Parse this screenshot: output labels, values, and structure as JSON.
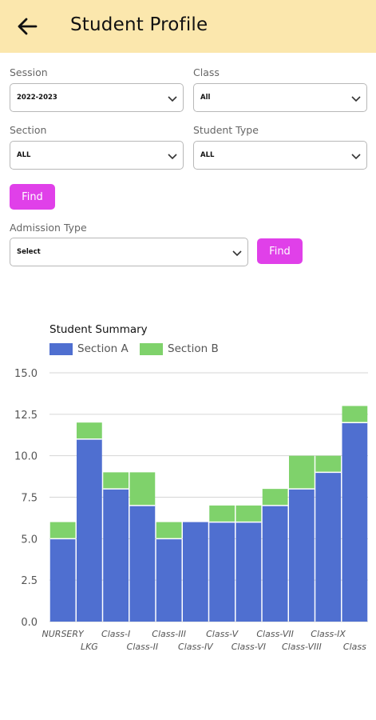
{
  "header": {
    "title": "Student Profile",
    "back_icon": "arrow-left-icon"
  },
  "filters": {
    "session": {
      "label": "Session",
      "value": "2022-2023"
    },
    "class": {
      "label": "Class",
      "value": "All"
    },
    "section": {
      "label": "Section",
      "value": "ALL"
    },
    "student_type": {
      "label": "Student Type",
      "value": "ALL"
    },
    "find_label": "Find",
    "admission_type": {
      "label": "Admission Type",
      "value": "Select"
    },
    "admission_find_label": "Find"
  },
  "colors": {
    "header_bg": "#fbe7ad",
    "button": "#e040e9",
    "section_a": "#4f6fd0",
    "section_b": "#7fd26b"
  },
  "chart_data": {
    "type": "bar",
    "stacked": true,
    "title": "Student Summary",
    "categories": [
      "NURSERY",
      "LKG",
      "Class-I",
      "Class-II",
      "Class-III",
      "Class-IV",
      "Class-V",
      "Class-VI",
      "Class-VII",
      "Class-VIII",
      "Class-IX",
      "Class"
    ],
    "series": [
      {
        "name": "Section A",
        "values": [
          5,
          11,
          8,
          7,
          5,
          6,
          6,
          6,
          7,
          8,
          9,
          12
        ]
      },
      {
        "name": "Section B",
        "values": [
          1,
          1,
          1,
          2,
          1,
          0,
          1,
          1,
          1,
          2,
          1,
          1
        ]
      }
    ],
    "yticks": [
      "0.0",
      "2.5",
      "5.0",
      "7.5",
      "10.0",
      "12.5",
      "15.0"
    ],
    "ylim": [
      0,
      15
    ],
    "grid": true,
    "legend": "top-left"
  }
}
